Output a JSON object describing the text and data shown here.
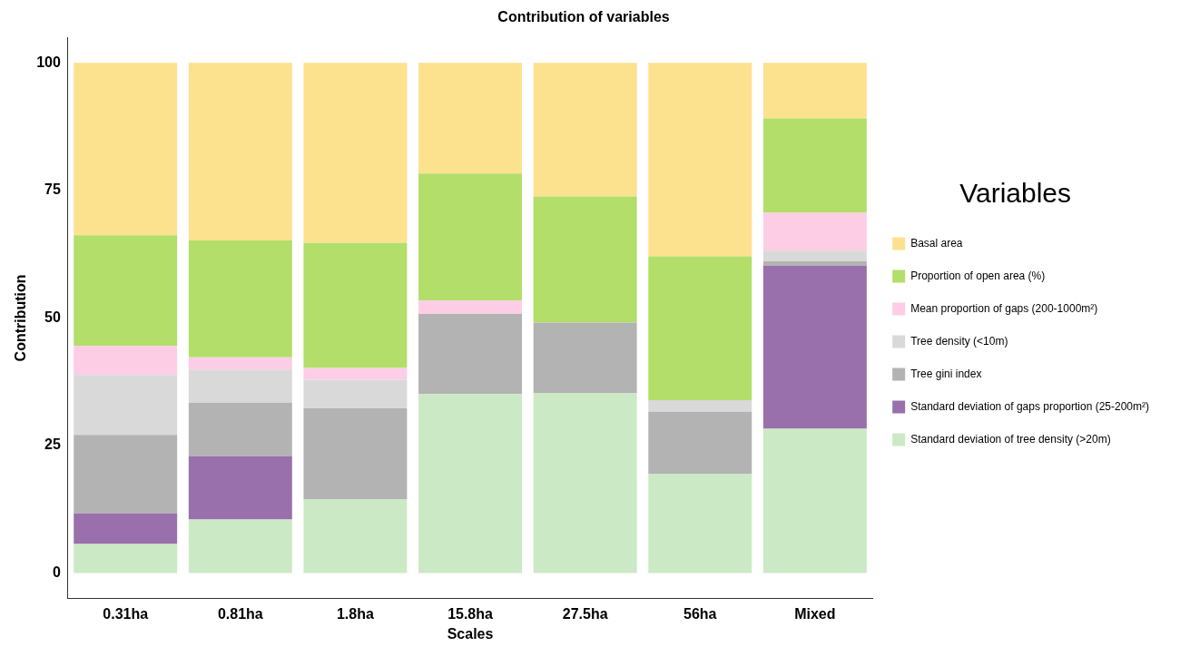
{
  "chart_data": {
    "type": "bar",
    "title": "Contribution of variables",
    "xlabel": "Scales",
    "ylabel": "Contribution",
    "legend_title": "Variables",
    "categories": [
      "0.31ha",
      "0.81ha",
      "1.8ha",
      "15.8ha",
      "27.5ha",
      "56ha",
      "Mixed"
    ],
    "stacked": true,
    "ylim": [
      -5,
      105
    ],
    "yticks": [
      0,
      25,
      50,
      75,
      100
    ],
    "grid": false,
    "legend": "right",
    "series": [
      {
        "name": "Standard deviation of tree density (>20m)",
        "color": "#cce9c6",
        "values": [
          5.7,
          10.5,
          14.4,
          35.1,
          35.3,
          19.4,
          28.3
        ]
      },
      {
        "name": "Standard deviation of gaps proportion (25-200m²)",
        "color": "#9970ab",
        "values": [
          6.0,
          12.4,
          0,
          0,
          0,
          0,
          31.9
        ]
      },
      {
        "name": "Tree gini index",
        "color": "#b3b3b3",
        "values": [
          15.4,
          10.5,
          17.9,
          15.7,
          13.8,
          12.2,
          0.9
        ]
      },
      {
        "name": "Tree density (<10m)",
        "color": "#d9d9d9",
        "values": [
          11.7,
          6.5,
          5.6,
          0,
          0,
          2.3,
          2.1
        ]
      },
      {
        "name": "Mean proportion of gaps (200-1000m²)",
        "color": "#fccde5",
        "values": [
          5.7,
          2.4,
          2.3,
          2.6,
          0,
          0,
          7.4
        ]
      },
      {
        "name": "Proportion of open area (%)",
        "color": "#b3de6a",
        "values": [
          21.7,
          22.9,
          24.5,
          24.9,
          24.7,
          28.2,
          18.5
        ]
      },
      {
        "name": "Basal area",
        "color": "#fce18f",
        "values": [
          33.8,
          34.8,
          35.3,
          21.7,
          26.2,
          37.9,
          10.9
        ]
      }
    ]
  }
}
